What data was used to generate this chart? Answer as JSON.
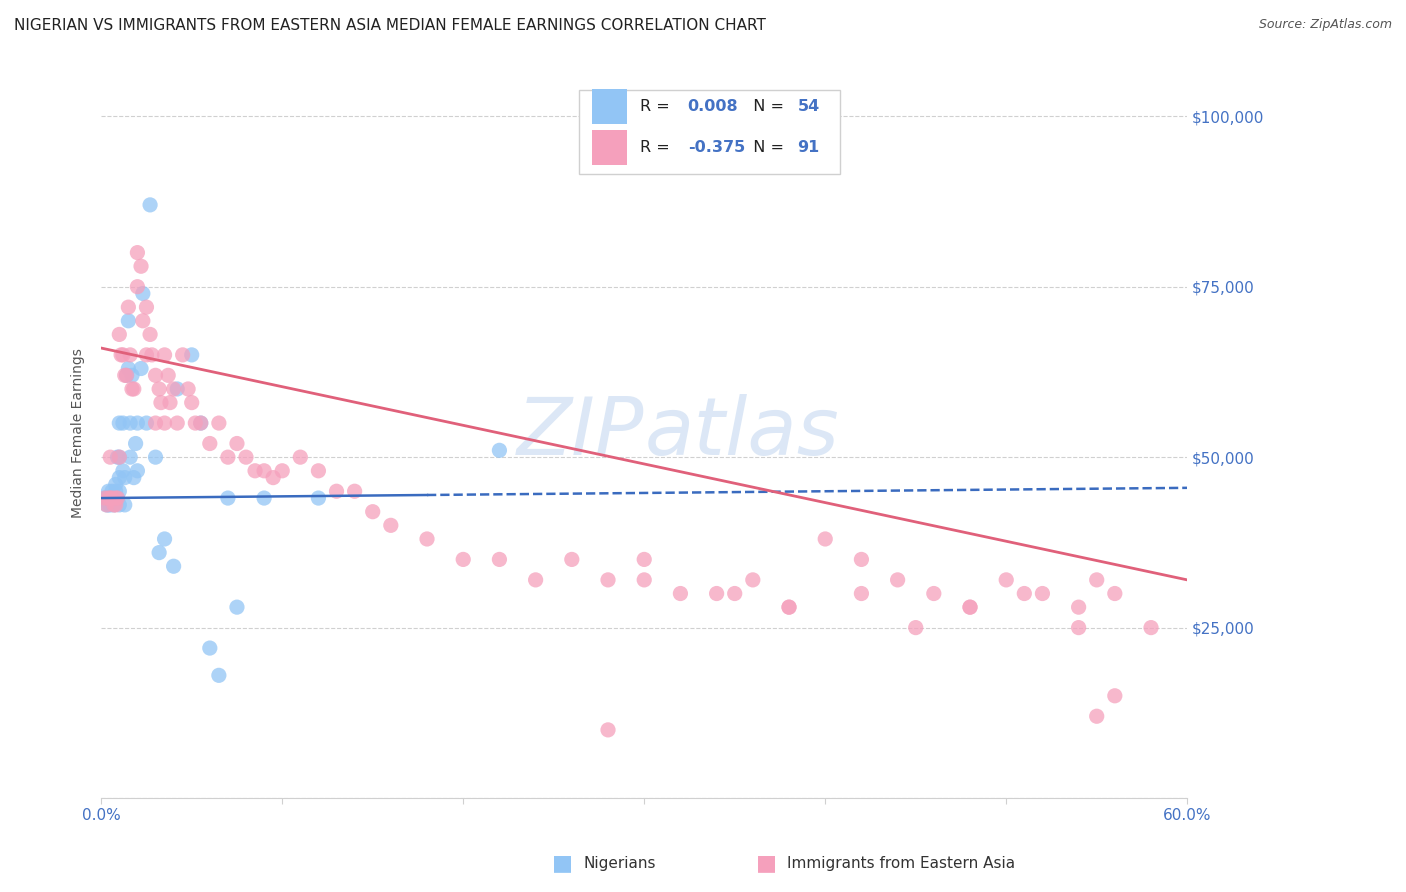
{
  "title": "NIGERIAN VS IMMIGRANTS FROM EASTERN ASIA MEDIAN FEMALE EARNINGS CORRELATION CHART",
  "source": "Source: ZipAtlas.com",
  "ylabel": "Median Female Earnings",
  "xlim": [
    0.0,
    0.6
  ],
  "ylim": [
    0,
    107000
  ],
  "yticks": [
    0,
    25000,
    50000,
    75000,
    100000
  ],
  "ytick_labels": [
    "",
    "$25,000",
    "$50,000",
    "$75,000",
    "$100,000"
  ],
  "xticks": [
    0.0,
    0.1,
    0.2,
    0.3,
    0.4,
    0.5,
    0.6
  ],
  "xtick_labels": [
    "0.0%",
    "",
    "",
    "",
    "",
    "",
    "60.0%"
  ],
  "legend_label1": "Nigerians",
  "legend_label2": "Immigrants from Eastern Asia",
  "blue_color": "#92c5f5",
  "pink_color": "#f5a0bc",
  "blue_line_color": "#3a6bbf",
  "pink_line_color": "#e0607a",
  "grid_color": "#d0d0d0",
  "background_color": "#ffffff",
  "title_fontsize": 11,
  "tick_label_color": "#4472c4",
  "watermark_color": "#c5d8f0",
  "blue_line_y0": 44000,
  "blue_line_y1": 45500,
  "pink_line_y0": 66000,
  "pink_line_y1": 32000,
  "blue_scatter_x": [
    0.002,
    0.003,
    0.003,
    0.004,
    0.004,
    0.005,
    0.005,
    0.005,
    0.006,
    0.006,
    0.007,
    0.007,
    0.008,
    0.008,
    0.008,
    0.009,
    0.009,
    0.01,
    0.01,
    0.01,
    0.01,
    0.01,
    0.012,
    0.012,
    0.013,
    0.013,
    0.014,
    0.015,
    0.015,
    0.016,
    0.016,
    0.017,
    0.018,
    0.019,
    0.02,
    0.02,
    0.022,
    0.023,
    0.025,
    0.027,
    0.03,
    0.032,
    0.035,
    0.04,
    0.042,
    0.05,
    0.055,
    0.06,
    0.065,
    0.07,
    0.075,
    0.09,
    0.12,
    0.22
  ],
  "blue_scatter_y": [
    44000,
    44000,
    43000,
    45000,
    43000,
    44000,
    44000,
    43000,
    45000,
    44000,
    44000,
    43000,
    46000,
    45000,
    44000,
    50000,
    44000,
    55000,
    50000,
    47000,
    45000,
    43000,
    55000,
    48000,
    47000,
    43000,
    62000,
    70000,
    63000,
    55000,
    50000,
    62000,
    47000,
    52000,
    55000,
    48000,
    63000,
    74000,
    55000,
    87000,
    50000,
    36000,
    38000,
    34000,
    60000,
    65000,
    55000,
    22000,
    18000,
    44000,
    28000,
    44000,
    44000,
    51000
  ],
  "pink_scatter_x": [
    0.002,
    0.003,
    0.004,
    0.005,
    0.005,
    0.006,
    0.007,
    0.008,
    0.008,
    0.009,
    0.01,
    0.01,
    0.011,
    0.012,
    0.013,
    0.014,
    0.015,
    0.016,
    0.017,
    0.018,
    0.02,
    0.02,
    0.022,
    0.023,
    0.025,
    0.025,
    0.027,
    0.028,
    0.03,
    0.03,
    0.032,
    0.033,
    0.035,
    0.035,
    0.037,
    0.038,
    0.04,
    0.042,
    0.045,
    0.048,
    0.05,
    0.052,
    0.055,
    0.06,
    0.065,
    0.07,
    0.075,
    0.08,
    0.085,
    0.09,
    0.095,
    0.1,
    0.11,
    0.12,
    0.13,
    0.14,
    0.15,
    0.16,
    0.18,
    0.2,
    0.22,
    0.24,
    0.26,
    0.28,
    0.3,
    0.32,
    0.34,
    0.36,
    0.38,
    0.4,
    0.42,
    0.44,
    0.46,
    0.48,
    0.5,
    0.52,
    0.54,
    0.56,
    0.58,
    0.3,
    0.35,
    0.38,
    0.42,
    0.45,
    0.48,
    0.51,
    0.54,
    0.55,
    0.55,
    0.56,
    0.28
  ],
  "pink_scatter_y": [
    44000,
    43000,
    44000,
    50000,
    44000,
    44000,
    43000,
    44000,
    43000,
    44000,
    68000,
    50000,
    65000,
    65000,
    62000,
    62000,
    72000,
    65000,
    60000,
    60000,
    80000,
    75000,
    78000,
    70000,
    72000,
    65000,
    68000,
    65000,
    62000,
    55000,
    60000,
    58000,
    65000,
    55000,
    62000,
    58000,
    60000,
    55000,
    65000,
    60000,
    58000,
    55000,
    55000,
    52000,
    55000,
    50000,
    52000,
    50000,
    48000,
    48000,
    47000,
    48000,
    50000,
    48000,
    45000,
    45000,
    42000,
    40000,
    38000,
    35000,
    35000,
    32000,
    35000,
    32000,
    35000,
    30000,
    30000,
    32000,
    28000,
    38000,
    35000,
    32000,
    30000,
    28000,
    32000,
    30000,
    28000,
    30000,
    25000,
    32000,
    30000,
    28000,
    30000,
    25000,
    28000,
    30000,
    25000,
    32000,
    12000,
    15000,
    10000
  ]
}
